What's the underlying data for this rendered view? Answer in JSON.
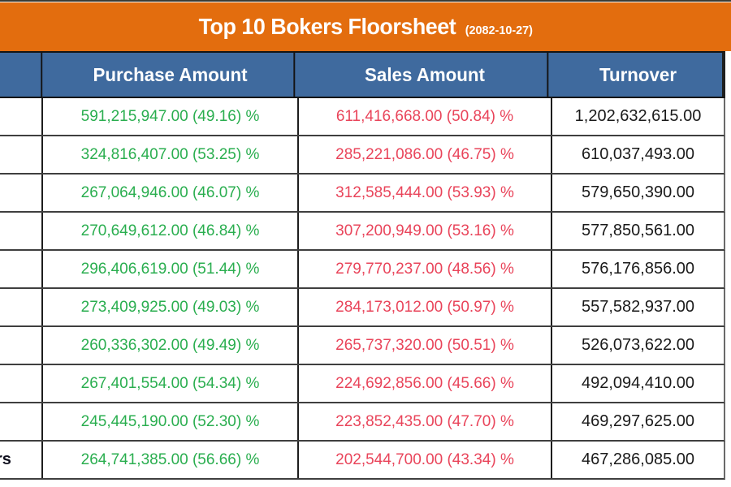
{
  "banner": {
    "title": "Top 10 Bokers Floorsheet",
    "date": "(2082-10-27)"
  },
  "header": {
    "stub": "",
    "purchase": "Purchase Amount",
    "sales": "Sales Amount",
    "turnover": "Turnover"
  },
  "rows": [
    {
      "broker": "",
      "purchase": "591,215,947.00 (49.16) %",
      "sales": "611,416,668.00 (50.84) %",
      "turnover": "1,202,632,615.00"
    },
    {
      "broker": "",
      "purchase": "324,816,407.00 (53.25) %",
      "sales": "285,221,086.00 (46.75) %",
      "turnover": "610,037,493.00"
    },
    {
      "broker": "",
      "purchase": "267,064,946.00 (46.07) %",
      "sales": "312,585,444.00 (53.93) %",
      "turnover": "579,650,390.00"
    },
    {
      "broker": "",
      "purchase": "270,649,612.00 (46.84) %",
      "sales": "307,200,949.00 (53.16) %",
      "turnover": "577,850,561.00"
    },
    {
      "broker": "",
      "purchase": "296,406,619.00 (51.44) %",
      "sales": "279,770,237.00 (48.56) %",
      "turnover": "576,176,856.00"
    },
    {
      "broker": "",
      "purchase": "273,409,925.00 (49.03) %",
      "sales": "284,173,012.00 (50.97) %",
      "turnover": "557,582,937.00"
    },
    {
      "broker": "",
      "purchase": "260,336,302.00 (49.49) %",
      "sales": "265,737,320.00 (50.51) %",
      "turnover": "526,073,622.00"
    },
    {
      "broker": "",
      "purchase": "267,401,554.00 (54.34) %",
      "sales": "224,692,856.00 (45.66) %",
      "turnover": "492,094,410.00"
    },
    {
      "broker": "",
      "purchase": "245,445,190.00 (52.30) %",
      "sales": "223,852,435.00 (47.70) %",
      "turnover": "469,297,625.00"
    },
    {
      "broker": "rs",
      "purchase": "264,741,385.00 (56.66) %",
      "sales": "202,544,700.00 (43.34) %",
      "turnover": "467,286,085.00"
    }
  ],
  "colors": {
    "banner_orange": "#e36d0e",
    "header_blue": "#3f6a9e",
    "purchase_green": "#2aae4f",
    "sales_red": "#e9445a",
    "turnover_black": "#1a1a1a"
  },
  "chart_data": {
    "type": "table",
    "title": "Top 10 Bokers Floorsheet",
    "date": "2082-10-27",
    "columns": [
      "Purchase Amount",
      "Sales Amount",
      "Turnover"
    ],
    "rows": [
      {
        "purchase_amount": 591215947.0,
        "purchase_pct": 49.16,
        "sales_amount": 611416668.0,
        "sales_pct": 50.84,
        "turnover": 1202632615.0
      },
      {
        "purchase_amount": 324816407.0,
        "purchase_pct": 53.25,
        "sales_amount": 285221086.0,
        "sales_pct": 46.75,
        "turnover": 610037493.0
      },
      {
        "purchase_amount": 267064946.0,
        "purchase_pct": 46.07,
        "sales_amount": 312585444.0,
        "sales_pct": 53.93,
        "turnover": 579650390.0
      },
      {
        "purchase_amount": 270649612.0,
        "purchase_pct": 46.84,
        "sales_amount": 307200949.0,
        "sales_pct": 53.16,
        "turnover": 577850561.0
      },
      {
        "purchase_amount": 296406619.0,
        "purchase_pct": 51.44,
        "sales_amount": 279770237.0,
        "sales_pct": 48.56,
        "turnover": 576176856.0
      },
      {
        "purchase_amount": 273409925.0,
        "purchase_pct": 49.03,
        "sales_amount": 284173012.0,
        "sales_pct": 50.97,
        "turnover": 557582937.0
      },
      {
        "purchase_amount": 260336302.0,
        "purchase_pct": 49.49,
        "sales_amount": 265737320.0,
        "sales_pct": 50.51,
        "turnover": 526073622.0
      },
      {
        "purchase_amount": 267401554.0,
        "purchase_pct": 54.34,
        "sales_amount": 224692856.0,
        "sales_pct": 45.66,
        "turnover": 492094410.0
      },
      {
        "purchase_amount": 245445190.0,
        "purchase_pct": 52.3,
        "sales_amount": 223852435.0,
        "sales_pct": 47.7,
        "turnover": 469297625.0
      },
      {
        "purchase_amount": 264741385.0,
        "purchase_pct": 56.66,
        "sales_amount": 202544700.0,
        "sales_pct": 43.34,
        "turnover": 467286085.0
      }
    ]
  }
}
